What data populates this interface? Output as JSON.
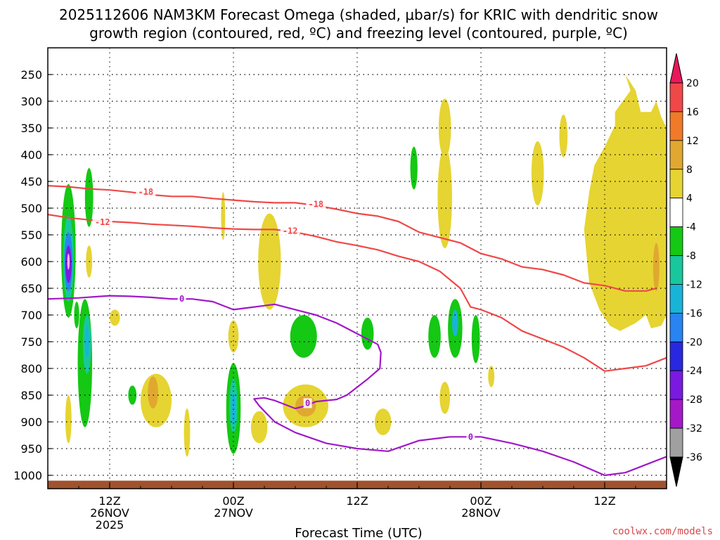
{
  "title_line1": "2025112606 NAM3KM Forecast Omega (shaded, μbar/s) for KRIC with dendritic snow",
  "title_line2": "growth region (contoured, red, ºC) and freezing level (contoured, purple, ºC)",
  "credit": "coolwx.com/models",
  "chart_data": {
    "type": "heatmap",
    "xlabel": "Forecast Time (UTC)",
    "x_axis": {
      "units": "forecast hour",
      "range": [
        0,
        60
      ],
      "ticks": [
        {
          "hour": 6,
          "lines": [
            "12Z",
            "26NOV",
            "2025"
          ]
        },
        {
          "hour": 18,
          "lines": [
            "00Z",
            "27NOV"
          ]
        },
        {
          "hour": 30,
          "lines": [
            "12Z"
          ]
        },
        {
          "hour": 42,
          "lines": [
            "00Z",
            "28NOV"
          ]
        },
        {
          "hour": 54,
          "lines": [
            "12Z"
          ]
        }
      ]
    },
    "y_axis": {
      "units": "mb",
      "range_bottom": 1025,
      "range_top": 200,
      "ticks": [
        250,
        300,
        350,
        400,
        450,
        500,
        550,
        600,
        650,
        700,
        750,
        800,
        850,
        900,
        950,
        1000
      ],
      "grid": true
    },
    "colorbar": {
      "labels": [
        "20",
        "16",
        "12",
        "8",
        "4",
        "-4",
        "-8",
        "-12",
        "-16",
        "-20",
        "-24",
        "-28",
        "-32",
        "-36"
      ],
      "colors": [
        "#e8185a",
        "#f04848",
        "#f07a28",
        "#e0a830",
        "#e6d432",
        "#ffffff",
        "#14c814",
        "#18c89c",
        "#18b4d8",
        "#2884f0",
        "#2828e0",
        "#7a1ae0",
        "#a418c8",
        "#a0a0a0",
        "#000000"
      ]
    },
    "contours": [
      {
        "name": "dgz_-18",
        "label": "-18",
        "color": "#f04848",
        "points": [
          [
            0,
            458
          ],
          [
            2,
            460
          ],
          [
            4,
            464
          ],
          [
            6,
            466
          ],
          [
            8,
            470
          ],
          [
            10,
            475
          ],
          [
            12,
            478
          ],
          [
            14,
            478
          ],
          [
            16,
            482
          ],
          [
            18,
            485
          ],
          [
            20,
            488
          ],
          [
            22,
            490
          ],
          [
            24,
            490
          ],
          [
            26,
            495
          ],
          [
            28,
            502
          ],
          [
            30,
            510
          ],
          [
            32,
            515
          ],
          [
            34,
            525
          ],
          [
            36,
            545
          ],
          [
            38,
            555
          ],
          [
            40,
            565
          ],
          [
            42,
            585
          ],
          [
            44,
            595
          ],
          [
            46,
            610
          ],
          [
            48,
            615
          ],
          [
            50,
            625
          ],
          [
            52,
            640
          ],
          [
            54,
            645
          ],
          [
            56,
            655
          ],
          [
            58,
            655
          ],
          [
            59,
            650
          ]
        ]
      },
      {
        "name": "dgz_-12",
        "label": "-12",
        "color": "#f04848",
        "points": [
          [
            0,
            512
          ],
          [
            2,
            518
          ],
          [
            4,
            522
          ],
          [
            6,
            525
          ],
          [
            8,
            527
          ],
          [
            10,
            530
          ],
          [
            12,
            532
          ],
          [
            14,
            534
          ],
          [
            16,
            537
          ],
          [
            18,
            539
          ],
          [
            20,
            540
          ],
          [
            22,
            540
          ],
          [
            24,
            545
          ],
          [
            26,
            553
          ],
          [
            28,
            563
          ],
          [
            30,
            570
          ],
          [
            32,
            578
          ],
          [
            34,
            590
          ],
          [
            36,
            600
          ],
          [
            38,
            618
          ],
          [
            40,
            650
          ],
          [
            41,
            685
          ],
          [
            42,
            690
          ],
          [
            44,
            705
          ],
          [
            46,
            730
          ],
          [
            48,
            745
          ],
          [
            50,
            760
          ],
          [
            52,
            780
          ],
          [
            54,
            805
          ],
          [
            56,
            800
          ],
          [
            58,
            795
          ],
          [
            60,
            780
          ]
        ]
      },
      {
        "name": "freezing_0",
        "label": "0",
        "color": "#a018c8",
        "points": [
          [
            0,
            670
          ],
          [
            3,
            668
          ],
          [
            6,
            664
          ],
          [
            8,
            665
          ],
          [
            10,
            667
          ],
          [
            12,
            670
          ],
          [
            14,
            670
          ],
          [
            16,
            675
          ],
          [
            18,
            690
          ],
          [
            20,
            685
          ],
          [
            22,
            680
          ],
          [
            24,
            690
          ],
          [
            26,
            700
          ],
          [
            28,
            715
          ],
          [
            30,
            735
          ],
          [
            32,
            755
          ],
          [
            32.3,
            770
          ],
          [
            32.2,
            800
          ],
          [
            31,
            820
          ],
          [
            30,
            835
          ],
          [
            29,
            850
          ],
          [
            28,
            858
          ],
          [
            26,
            862
          ],
          [
            25,
            870
          ],
          [
            24,
            875
          ],
          [
            22,
            860
          ],
          [
            21,
            855
          ],
          [
            20,
            857
          ],
          [
            20.5,
            870
          ],
          [
            22,
            900
          ],
          [
            24,
            920
          ],
          [
            27,
            940
          ],
          [
            30,
            950
          ],
          [
            33,
            955
          ],
          [
            36,
            935
          ],
          [
            39,
            928
          ],
          [
            42,
            928
          ],
          [
            45,
            940
          ],
          [
            48,
            955
          ],
          [
            51,
            975
          ],
          [
            54,
            1000
          ],
          [
            56,
            995
          ],
          [
            58,
            980
          ],
          [
            60,
            965
          ]
        ]
      }
    ],
    "regions": [
      {
        "shape": "ellipse",
        "cx": 2,
        "cy": 580,
        "rx": 0.7,
        "ry": 125,
        "color": "#14c814"
      },
      {
        "shape": "ellipse",
        "cx": 2,
        "cy": 595,
        "rx": 0.5,
        "ry": 80,
        "color": "#18c89c"
      },
      {
        "shape": "ellipse",
        "cx": 2,
        "cy": 600,
        "rx": 0.4,
        "ry": 55,
        "color": "#2884f0"
      },
      {
        "shape": "ellipse",
        "cx": 2,
        "cy": 605,
        "rx": 0.3,
        "ry": 35,
        "color": "#7a1ae0"
      },
      {
        "shape": "ellipse",
        "cx": 2,
        "cy": 600,
        "rx": 0.12,
        "ry": 15,
        "color": "#f0b4f0"
      },
      {
        "shape": "ellipse",
        "cx": 2.8,
        "cy": 700,
        "rx": 0.25,
        "ry": 25,
        "color": "#14c814"
      },
      {
        "shape": "ellipse",
        "cx": 3.6,
        "cy": 790,
        "rx": 0.7,
        "ry": 120,
        "color": "#14c814"
      },
      {
        "shape": "ellipse",
        "cx": 3.8,
        "cy": 755,
        "rx": 0.4,
        "ry": 55,
        "color": "#18c89c"
      },
      {
        "shape": "ellipse",
        "cx": 3.8,
        "cy": 750,
        "rx": 0.2,
        "ry": 30,
        "color": "#18b4d8"
      },
      {
        "shape": "ellipse",
        "cx": 4.0,
        "cy": 480,
        "rx": 0.4,
        "ry": 55,
        "color": "#14c814"
      },
      {
        "shape": "ellipse",
        "cx": 4.0,
        "cy": 600,
        "rx": 0.3,
        "ry": 30,
        "color": "#e6d432"
      },
      {
        "shape": "ellipse",
        "cx": 2,
        "cy": 895,
        "rx": 0.3,
        "ry": 45,
        "color": "#e6d432"
      },
      {
        "shape": "ellipse",
        "cx": 6.5,
        "cy": 705,
        "rx": 0.5,
        "ry": 15,
        "color": "#e6d432"
      },
      {
        "shape": "ellipse",
        "cx": 8.2,
        "cy": 850,
        "rx": 0.4,
        "ry": 18,
        "color": "#14c814"
      },
      {
        "shape": "ellipse",
        "cx": 10.5,
        "cy": 860,
        "rx": 1.5,
        "ry": 50,
        "color": "#e6d432"
      },
      {
        "shape": "ellipse",
        "cx": 10.2,
        "cy": 845,
        "rx": 0.5,
        "ry": 30,
        "color": "#e0a830"
      },
      {
        "shape": "ellipse",
        "cx": 13.5,
        "cy": 920,
        "rx": 0.3,
        "ry": 45,
        "color": "#e6d432"
      },
      {
        "shape": "ellipse",
        "cx": 17,
        "cy": 515,
        "rx": 0.2,
        "ry": 45,
        "color": "#e6d432"
      },
      {
        "shape": "ellipse",
        "cx": 18,
        "cy": 740,
        "rx": 0.5,
        "ry": 30,
        "color": "#e6d432"
      },
      {
        "shape": "ellipse",
        "cx": 18,
        "cy": 875,
        "rx": 0.7,
        "ry": 85,
        "color": "#14c814"
      },
      {
        "shape": "ellipse",
        "cx": 18,
        "cy": 870,
        "rx": 0.4,
        "ry": 50,
        "color": "#18c89c"
      },
      {
        "shape": "ellipse",
        "cx": 18,
        "cy": 875,
        "rx": 0.2,
        "ry": 30,
        "color": "#18b4d8"
      },
      {
        "shape": "ellipse",
        "cx": 20.5,
        "cy": 910,
        "rx": 0.8,
        "ry": 30,
        "color": "#e6d432"
      },
      {
        "shape": "ellipse",
        "cx": 21.5,
        "cy": 600,
        "rx": 1.1,
        "ry": 90,
        "color": "#e6d432"
      },
      {
        "shape": "ellipse",
        "cx": 24.8,
        "cy": 740,
        "rx": 1.3,
        "ry": 40,
        "color": "#14c814"
      },
      {
        "shape": "ellipse",
        "cx": 25.0,
        "cy": 870,
        "rx": 2.2,
        "ry": 40,
        "color": "#e6d432"
      },
      {
        "shape": "ellipse",
        "cx": 25.0,
        "cy": 870,
        "rx": 1.0,
        "ry": 20,
        "color": "#e0a830"
      },
      {
        "shape": "ellipse",
        "cx": 31,
        "cy": 735,
        "rx": 0.6,
        "ry": 30,
        "color": "#14c814"
      },
      {
        "shape": "ellipse",
        "cx": 32.5,
        "cy": 900,
        "rx": 0.8,
        "ry": 25,
        "color": "#e6d432"
      },
      {
        "shape": "ellipse",
        "cx": 35.5,
        "cy": 425,
        "rx": 0.35,
        "ry": 40,
        "color": "#14c814"
      },
      {
        "shape": "ellipse",
        "cx": 37.5,
        "cy": 740,
        "rx": 0.6,
        "ry": 40,
        "color": "#14c814"
      },
      {
        "shape": "ellipse",
        "cx": 38.5,
        "cy": 350,
        "rx": 0.6,
        "ry": 55,
        "color": "#e6d432"
      },
      {
        "shape": "ellipse",
        "cx": 38.5,
        "cy": 480,
        "rx": 0.7,
        "ry": 95,
        "color": "#e6d432"
      },
      {
        "shape": "ellipse",
        "cx": 38.5,
        "cy": 855,
        "rx": 0.5,
        "ry": 30,
        "color": "#e6d432"
      },
      {
        "shape": "ellipse",
        "cx": 39.5,
        "cy": 725,
        "rx": 0.7,
        "ry": 55,
        "color": "#14c814"
      },
      {
        "shape": "ellipse",
        "cx": 39.5,
        "cy": 715,
        "rx": 0.3,
        "ry": 25,
        "color": "#18b4d8"
      },
      {
        "shape": "ellipse",
        "cx": 41.5,
        "cy": 745,
        "rx": 0.4,
        "ry": 45,
        "color": "#14c814"
      },
      {
        "shape": "ellipse",
        "cx": 43,
        "cy": 815,
        "rx": 0.3,
        "ry": 20,
        "color": "#e6d432"
      },
      {
        "shape": "ellipse",
        "cx": 47.5,
        "cy": 435,
        "rx": 0.6,
        "ry": 60,
        "color": "#e6d432"
      },
      {
        "shape": "ellipse",
        "cx": 50,
        "cy": 365,
        "rx": 0.4,
        "ry": 40,
        "color": "#e6d432"
      },
      {
        "shape": "polygon",
        "color": "#e6d432",
        "points": [
          [
            56,
            250
          ],
          [
            56.5,
            280
          ],
          [
            55,
            320
          ],
          [
            55,
            345
          ],
          [
            54,
            385
          ],
          [
            53,
            420
          ],
          [
            52.5,
            470
          ],
          [
            52,
            540
          ],
          [
            52.5,
            640
          ],
          [
            53.5,
            690
          ],
          [
            54.5,
            720
          ],
          [
            55.5,
            730
          ],
          [
            57,
            715
          ],
          [
            58,
            700
          ],
          [
            58.5,
            725
          ],
          [
            59.5,
            720
          ],
          [
            60,
            700
          ],
          [
            60,
            350
          ],
          [
            59.5,
            330
          ],
          [
            59,
            300
          ],
          [
            58.5,
            320
          ],
          [
            57.5,
            320
          ],
          [
            57,
            280
          ]
        ]
      },
      {
        "shape": "ellipse",
        "cx": 59,
        "cy": 610,
        "rx": 0.3,
        "ry": 45,
        "color": "#e0a830"
      }
    ],
    "contour_labels": [
      {
        "text": "-18",
        "x": 9.5,
        "y": 470,
        "color": "#f04848"
      },
      {
        "text": "-18",
        "x": 26,
        "y": 493,
        "color": "#f04848"
      },
      {
        "text": "-12",
        "x": 5.3,
        "y": 526,
        "color": "#f04848"
      },
      {
        "text": "-12",
        "x": 23.5,
        "y": 543,
        "color": "#f04848"
      },
      {
        "text": "0",
        "x": 13,
        "y": 670,
        "color": "#a018c8"
      },
      {
        "text": "0",
        "x": 25.2,
        "y": 865,
        "color": "#a018c8"
      },
      {
        "text": "0",
        "x": 41,
        "y": 928,
        "color": "#a018c8"
      }
    ],
    "terrain_color": "#a0522d"
  }
}
